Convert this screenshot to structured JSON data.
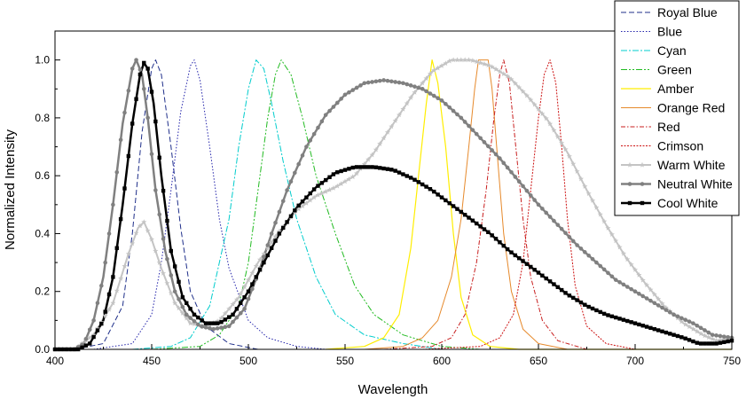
{
  "chart_data": {
    "type": "line",
    "title": "",
    "xlabel": "Wavelength",
    "ylabel": "Normalized Intensity",
    "xlim": [
      400,
      750
    ],
    "ylim": [
      0,
      1.1
    ],
    "x_ticks": [
      "400",
      "450",
      "500",
      "550",
      "600",
      "650",
      "700",
      "750"
    ],
    "y_ticks": [
      "0.0",
      "0.2",
      "0.4",
      "0.6",
      "0.8",
      "1.0"
    ],
    "grid": false,
    "legend_position": "top-right",
    "series": [
      {
        "name": "Royal Blue",
        "color": "#1f2f8a",
        "dash": "6,3",
        "marker": "none",
        "width": 1,
        "points": [
          [
            410,
            0
          ],
          [
            425,
            0.02
          ],
          [
            435,
            0.15
          ],
          [
            440,
            0.4
          ],
          [
            445,
            0.75
          ],
          [
            450,
            0.97
          ],
          [
            452,
            1.0
          ],
          [
            455,
            0.95
          ],
          [
            460,
            0.7
          ],
          [
            465,
            0.42
          ],
          [
            470,
            0.2
          ],
          [
            478,
            0.08
          ],
          [
            490,
            0.02
          ],
          [
            505,
            0
          ],
          [
            750,
            0
          ]
        ]
      },
      {
        "name": "Blue",
        "color": "#2222aa",
        "dash": "1.5,2",
        "marker": "none",
        "width": 1,
        "points": [
          [
            420,
            0
          ],
          [
            440,
            0.02
          ],
          [
            450,
            0.12
          ],
          [
            455,
            0.3
          ],
          [
            460,
            0.55
          ],
          [
            465,
            0.82
          ],
          [
            470,
            0.98
          ],
          [
            472,
            1.0
          ],
          [
            475,
            0.93
          ],
          [
            480,
            0.7
          ],
          [
            485,
            0.45
          ],
          [
            490,
            0.28
          ],
          [
            500,
            0.1
          ],
          [
            510,
            0.04
          ],
          [
            525,
            0.01
          ],
          [
            540,
            0
          ],
          [
            750,
            0
          ]
        ]
      },
      {
        "name": "Cyan",
        "color": "#00cccc",
        "dash": "7,2,2,2",
        "marker": "none",
        "width": 1,
        "points": [
          [
            440,
            0
          ],
          [
            460,
            0.01
          ],
          [
            470,
            0.04
          ],
          [
            480,
            0.15
          ],
          [
            490,
            0.45
          ],
          [
            495,
            0.7
          ],
          [
            500,
            0.9
          ],
          [
            504,
            1.0
          ],
          [
            508,
            0.97
          ],
          [
            512,
            0.85
          ],
          [
            518,
            0.65
          ],
          [
            525,
            0.45
          ],
          [
            535,
            0.25
          ],
          [
            545,
            0.12
          ],
          [
            560,
            0.05
          ],
          [
            580,
            0.02
          ],
          [
            600,
            0
          ],
          [
            750,
            0
          ]
        ]
      },
      {
        "name": "Green",
        "color": "#22bb22",
        "dash": "7,2,2,2,2,2",
        "marker": "none",
        "width": 1,
        "points": [
          [
            450,
            0
          ],
          [
            475,
            0.01
          ],
          [
            485,
            0.05
          ],
          [
            495,
            0.15
          ],
          [
            500,
            0.3
          ],
          [
            505,
            0.55
          ],
          [
            510,
            0.8
          ],
          [
            514,
            0.95
          ],
          [
            517,
            1.0
          ],
          [
            522,
            0.95
          ],
          [
            528,
            0.8
          ],
          [
            535,
            0.6
          ],
          [
            545,
            0.4
          ],
          [
            555,
            0.22
          ],
          [
            565,
            0.12
          ],
          [
            580,
            0.05
          ],
          [
            600,
            0.01
          ],
          [
            620,
            0
          ],
          [
            750,
            0
          ]
        ]
      },
      {
        "name": "Amber",
        "color": "#ffee00",
        "dash": "",
        "marker": "none",
        "width": 1.2,
        "points": [
          [
            540,
            0
          ],
          [
            560,
            0.01
          ],
          [
            570,
            0.04
          ],
          [
            578,
            0.12
          ],
          [
            584,
            0.35
          ],
          [
            588,
            0.6
          ],
          [
            592,
            0.85
          ],
          [
            595,
            1.0
          ],
          [
            598,
            0.92
          ],
          [
            602,
            0.7
          ],
          [
            606,
            0.4
          ],
          [
            610,
            0.18
          ],
          [
            616,
            0.05
          ],
          [
            625,
            0.01
          ],
          [
            640,
            0
          ],
          [
            750,
            0
          ]
        ]
      },
      {
        "name": "Orange Red",
        "color": "#e6892b",
        "dash": "",
        "marker": "none",
        "width": 1,
        "points": [
          [
            560,
            0
          ],
          [
            580,
            0.01
          ],
          [
            590,
            0.04
          ],
          [
            598,
            0.1
          ],
          [
            605,
            0.25
          ],
          [
            610,
            0.45
          ],
          [
            614,
            0.7
          ],
          [
            617,
            0.9
          ],
          [
            619,
            1.0
          ],
          [
            624,
            1.0
          ],
          [
            626,
            0.9
          ],
          [
            629,
            0.65
          ],
          [
            632,
            0.4
          ],
          [
            636,
            0.2
          ],
          [
            642,
            0.07
          ],
          [
            650,
            0.02
          ],
          [
            665,
            0
          ],
          [
            750,
            0
          ]
        ]
      },
      {
        "name": "Red",
        "color": "#c81e1e",
        "dash": "5,2,1.5,2",
        "marker": "none",
        "width": 1,
        "points": [
          [
            570,
            0
          ],
          [
            595,
            0.01
          ],
          [
            605,
            0.04
          ],
          [
            612,
            0.12
          ],
          [
            618,
            0.3
          ],
          [
            623,
            0.55
          ],
          [
            627,
            0.8
          ],
          [
            630,
            0.95
          ],
          [
            632,
            1.0
          ],
          [
            635,
            0.92
          ],
          [
            638,
            0.72
          ],
          [
            642,
            0.45
          ],
          [
            646,
            0.25
          ],
          [
            652,
            0.1
          ],
          [
            660,
            0.03
          ],
          [
            675,
            0
          ],
          [
            750,
            0
          ]
        ]
      },
      {
        "name": "Crimson",
        "color": "#cc1111",
        "dash": "2,1.5",
        "marker": "none",
        "width": 1,
        "points": [
          [
            590,
            0
          ],
          [
            620,
            0.01
          ],
          [
            630,
            0.04
          ],
          [
            637,
            0.12
          ],
          [
            642,
            0.3
          ],
          [
            646,
            0.55
          ],
          [
            650,
            0.8
          ],
          [
            653,
            0.95
          ],
          [
            656,
            1.0
          ],
          [
            659,
            0.92
          ],
          [
            662,
            0.7
          ],
          [
            665,
            0.45
          ],
          [
            669,
            0.22
          ],
          [
            675,
            0.08
          ],
          [
            685,
            0.02
          ],
          [
            700,
            0
          ],
          [
            750,
            0
          ]
        ]
      },
      {
        "name": "Warm White",
        "color": "#c4c4c4",
        "dash": "",
        "marker": "star",
        "width": 2,
        "points": [
          [
            400,
            0
          ],
          [
            410,
            0
          ],
          [
            420,
            0.05
          ],
          [
            430,
            0.16
          ],
          [
            438,
            0.33
          ],
          [
            443,
            0.42
          ],
          [
            446,
            0.44
          ],
          [
            450,
            0.38
          ],
          [
            455,
            0.28
          ],
          [
            462,
            0.16
          ],
          [
            470,
            0.09
          ],
          [
            478,
            0.08
          ],
          [
            485,
            0.1
          ],
          [
            495,
            0.18
          ],
          [
            505,
            0.3
          ],
          [
            515,
            0.4
          ],
          [
            525,
            0.48
          ],
          [
            535,
            0.53
          ],
          [
            545,
            0.56
          ],
          [
            555,
            0.6
          ],
          [
            565,
            0.68
          ],
          [
            575,
            0.78
          ],
          [
            585,
            0.88
          ],
          [
            595,
            0.96
          ],
          [
            605,
            1.0
          ],
          [
            615,
            1.0
          ],
          [
            625,
            0.98
          ],
          [
            635,
            0.94
          ],
          [
            645,
            0.87
          ],
          [
            655,
            0.79
          ],
          [
            665,
            0.68
          ],
          [
            675,
            0.55
          ],
          [
            685,
            0.43
          ],
          [
            695,
            0.32
          ],
          [
            705,
            0.23
          ],
          [
            715,
            0.15
          ],
          [
            725,
            0.09
          ],
          [
            735,
            0.05
          ],
          [
            742,
            0.03
          ],
          [
            750,
            0.04
          ]
        ]
      },
      {
        "name": "Neutral White",
        "color": "#808080",
        "dash": "",
        "marker": "circle",
        "width": 2.5,
        "points": [
          [
            400,
            0
          ],
          [
            410,
            0
          ],
          [
            415,
            0.02
          ],
          [
            420,
            0.1
          ],
          [
            425,
            0.25
          ],
          [
            430,
            0.5
          ],
          [
            435,
            0.78
          ],
          [
            440,
            0.97
          ],
          [
            442,
            1.0
          ],
          [
            445,
            0.95
          ],
          [
            448,
            0.8
          ],
          [
            452,
            0.55
          ],
          [
            457,
            0.34
          ],
          [
            462,
            0.2
          ],
          [
            468,
            0.12
          ],
          [
            475,
            0.08
          ],
          [
            482,
            0.07
          ],
          [
            490,
            0.08
          ],
          [
            498,
            0.14
          ],
          [
            505,
            0.26
          ],
          [
            512,
            0.4
          ],
          [
            520,
            0.55
          ],
          [
            530,
            0.7
          ],
          [
            540,
            0.81
          ],
          [
            550,
            0.88
          ],
          [
            560,
            0.92
          ],
          [
            570,
            0.93
          ],
          [
            580,
            0.92
          ],
          [
            590,
            0.9
          ],
          [
            600,
            0.86
          ],
          [
            610,
            0.8
          ],
          [
            620,
            0.73
          ],
          [
            630,
            0.66
          ],
          [
            640,
            0.58
          ],
          [
            650,
            0.5
          ],
          [
            660,
            0.43
          ],
          [
            670,
            0.36
          ],
          [
            680,
            0.3
          ],
          [
            690,
            0.24
          ],
          [
            700,
            0.2
          ],
          [
            710,
            0.16
          ],
          [
            720,
            0.12
          ],
          [
            730,
            0.09
          ],
          [
            740,
            0.05
          ],
          [
            750,
            0.04
          ]
        ]
      },
      {
        "name": "Cool White",
        "color": "#000000",
        "dash": "",
        "marker": "square",
        "width": 2.5,
        "points": [
          [
            400,
            0
          ],
          [
            412,
            0
          ],
          [
            418,
            0.02
          ],
          [
            425,
            0.1
          ],
          [
            430,
            0.25
          ],
          [
            435,
            0.5
          ],
          [
            440,
            0.78
          ],
          [
            444,
            0.95
          ],
          [
            446,
            0.99
          ],
          [
            448,
            0.97
          ],
          [
            451,
            0.85
          ],
          [
            455,
            0.6
          ],
          [
            460,
            0.34
          ],
          [
            466,
            0.18
          ],
          [
            472,
            0.12
          ],
          [
            478,
            0.09
          ],
          [
            485,
            0.09
          ],
          [
            492,
            0.12
          ],
          [
            500,
            0.2
          ],
          [
            508,
            0.3
          ],
          [
            516,
            0.4
          ],
          [
            525,
            0.49
          ],
          [
            535,
            0.56
          ],
          [
            545,
            0.61
          ],
          [
            555,
            0.63
          ],
          [
            565,
            0.63
          ],
          [
            575,
            0.62
          ],
          [
            585,
            0.59
          ],
          [
            595,
            0.55
          ],
          [
            605,
            0.5
          ],
          [
            615,
            0.45
          ],
          [
            625,
            0.4
          ],
          [
            635,
            0.34
          ],
          [
            645,
            0.29
          ],
          [
            655,
            0.24
          ],
          [
            665,
            0.19
          ],
          [
            675,
            0.15
          ],
          [
            685,
            0.12
          ],
          [
            695,
            0.1
          ],
          [
            705,
            0.08
          ],
          [
            715,
            0.06
          ],
          [
            725,
            0.04
          ],
          [
            733,
            0.02
          ],
          [
            742,
            0.02
          ],
          [
            750,
            0.03
          ]
        ]
      }
    ]
  }
}
